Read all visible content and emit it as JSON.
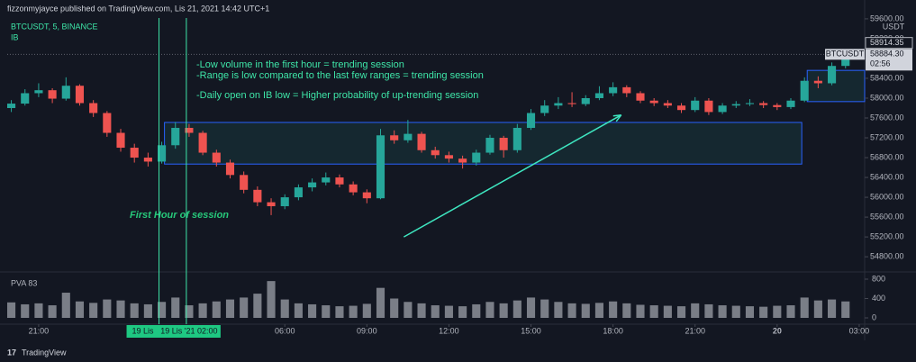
{
  "header": "fizzonmyjayce published on TradingView.com, Lis 21, 2021 14:42 UTC+1",
  "footer": "TradingView",
  "chart_data": {
    "type": "candlestick",
    "symbol_info": "BTCUSDT, 5, BINANCE",
    "indicator": "IB",
    "volume_label": "PVA 83",
    "y_unit": "USDT",
    "annotations": [
      "-Low volume in the first hour = trending session",
      "-Range is low compared to the last few ranges  = trending session",
      "-Daily open on IB low = Higher probability of up-trending session"
    ],
    "session_note": "First Hour of session",
    "up_color": "#26a69a",
    "down_color": "#ef5350",
    "volume_color": "#9598a1",
    "x": [
      -1,
      -0.5,
      0,
      0.5,
      1,
      1.5,
      2,
      2.5,
      3,
      3.5,
      4,
      4.5,
      5,
      5.5,
      6,
      6.5,
      7,
      7.5,
      8,
      8.5,
      9,
      9.5,
      10,
      10.5,
      11,
      11.5,
      12,
      12.5,
      13,
      13.5,
      14,
      14.5,
      15,
      15.5,
      16,
      16.5,
      17,
      17.5,
      18,
      18.5,
      19,
      19.5,
      20,
      20.5,
      21,
      21.5,
      22,
      22.5,
      23,
      23.5,
      24,
      24.5,
      25,
      25.5,
      26,
      26.5,
      27,
      27.5,
      28,
      28.5,
      29,
      29.5
    ],
    "candles": [
      [
        57800,
        57960,
        57720,
        57890
      ],
      [
        57890,
        58180,
        57850,
        58100
      ],
      [
        58100,
        58300,
        58020,
        58160
      ],
      [
        58160,
        58200,
        57900,
        57990
      ],
      [
        57990,
        58420,
        57950,
        58250
      ],
      [
        58250,
        58280,
        57850,
        57900
      ],
      [
        57900,
        57960,
        57620,
        57700
      ],
      [
        57700,
        57740,
        57220,
        57300
      ],
      [
        57300,
        57380,
        56920,
        57000
      ],
      [
        57000,
        57080,
        56700,
        56800
      ],
      [
        56800,
        56900,
        56620,
        56720
      ],
      [
        56720,
        57120,
        56680,
        57050
      ],
      [
        57050,
        57520,
        56980,
        57400
      ],
      [
        57400,
        57480,
        57220,
        57300
      ],
      [
        57300,
        57340,
        56850,
        56900
      ],
      [
        56900,
        56960,
        56620,
        56700
      ],
      [
        56700,
        56760,
        56380,
        56450
      ],
      [
        56450,
        56520,
        56080,
        56150
      ],
      [
        56150,
        56220,
        55820,
        55900
      ],
      [
        55900,
        55980,
        55640,
        55820
      ],
      [
        55820,
        56060,
        55760,
        56000
      ],
      [
        56000,
        56260,
        55940,
        56200
      ],
      [
        56200,
        56380,
        56120,
        56300
      ],
      [
        56300,
        56500,
        56240,
        56400
      ],
      [
        56400,
        56460,
        56200,
        56260
      ],
      [
        56260,
        56320,
        56040,
        56100
      ],
      [
        56100,
        56160,
        55880,
        55980
      ],
      [
        55980,
        57380,
        55960,
        57250
      ],
      [
        57250,
        57350,
        57080,
        57150
      ],
      [
        57150,
        57560,
        57100,
        57280
      ],
      [
        57280,
        57320,
        56900,
        56950
      ],
      [
        56950,
        57020,
        56780,
        56850
      ],
      [
        56850,
        56920,
        56700,
        56780
      ],
      [
        56780,
        56840,
        56580,
        56700
      ],
      [
        56700,
        56960,
        56640,
        56900
      ],
      [
        56900,
        57260,
        56860,
        57200
      ],
      [
        57200,
        57240,
        56800,
        56950
      ],
      [
        56950,
        57480,
        56900,
        57400
      ],
      [
        57400,
        57780,
        57360,
        57700
      ],
      [
        57700,
        57960,
        57640,
        57850
      ],
      [
        57850,
        58020,
        57780,
        57900
      ],
      [
        57900,
        58120,
        57820,
        57880
      ],
      [
        57880,
        58060,
        57840,
        58000
      ],
      [
        58000,
        58240,
        57960,
        58100
      ],
      [
        58100,
        58320,
        58040,
        58220
      ],
      [
        58220,
        58260,
        58020,
        58100
      ],
      [
        58100,
        58140,
        57900,
        57950
      ],
      [
        57950,
        58000,
        57840,
        57900
      ],
      [
        57900,
        57960,
        57800,
        57850
      ],
      [
        57850,
        57900,
        57700,
        57760
      ],
      [
        57760,
        58020,
        57720,
        57950
      ],
      [
        57950,
        58000,
        57660,
        57720
      ],
      [
        57720,
        57900,
        57680,
        57850
      ],
      [
        57850,
        57940,
        57800,
        57880
      ],
      [
        57880,
        57980,
        57840,
        57900
      ],
      [
        57900,
        57940,
        57800,
        57860
      ],
      [
        57860,
        57900,
        57760,
        57820
      ],
      [
        57820,
        58000,
        57780,
        57950
      ],
      [
        57950,
        58420,
        57920,
        58350
      ],
      [
        58350,
        58440,
        58200,
        58300
      ],
      [
        58300,
        58720,
        58260,
        58650
      ],
      [
        58650,
        58914.35,
        58600,
        58884.3
      ]
    ],
    "volume": [
      320,
      280,
      300,
      260,
      520,
      340,
      310,
      380,
      360,
      300,
      280,
      330,
      420,
      260,
      300,
      340,
      380,
      420,
      500,
      760,
      380,
      300,
      280,
      260,
      240,
      250,
      290,
      620,
      400,
      330,
      300,
      260,
      250,
      240,
      280,
      330,
      300,
      360,
      420,
      380,
      330,
      300,
      290,
      310,
      340,
      300,
      270,
      260,
      250,
      240,
      300,
      280,
      260,
      250,
      240,
      230,
      250,
      260,
      420,
      360,
      380,
      340
    ],
    "xlim": [
      -1.15,
      30.2
    ],
    "ylim": [
      54530,
      59980
    ],
    "vlim": [
      -130,
      930
    ],
    "xticks": [
      {
        "value": 0,
        "label": "21:00"
      },
      {
        "value": 9,
        "label": "06:00"
      },
      {
        "value": 12,
        "label": "09:00"
      },
      {
        "value": 15,
        "label": "12:00"
      },
      {
        "value": 18,
        "label": "15:00"
      },
      {
        "value": 21,
        "label": "18:00"
      },
      {
        "value": 24,
        "label": "21:00"
      },
      {
        "value": 27,
        "label": "20"
      },
      {
        "value": 30,
        "label": "03:00"
      }
    ],
    "yticks": [
      {
        "value": 54800,
        "label": "54800.00"
      },
      {
        "value": 55200,
        "label": "55200.00"
      },
      {
        "value": 55600,
        "label": "55600.00"
      },
      {
        "value": 56000,
        "label": "56000.00"
      },
      {
        "value": 56400,
        "label": "56400.00"
      },
      {
        "value": 56800,
        "label": "56800.00"
      },
      {
        "value": 57200,
        "label": "57200.00"
      },
      {
        "value": 57600,
        "label": "57600.00"
      },
      {
        "value": 58000,
        "label": "58000.00"
      },
      {
        "value": 58400,
        "label": "58400.00"
      },
      {
        "value": 58800,
        "label": "58800.00"
      },
      {
        "value": 59200,
        "label": "59200.00"
      },
      {
        "value": 59600,
        "label": "59600.00"
      }
    ],
    "vticks": [
      0,
      400,
      800
    ],
    "time_markers": [
      {
        "value": 4.4,
        "label": "19 Lis"
      },
      {
        "value": 5.4,
        "label": "19 Lis '21  02:00"
      }
    ],
    "ranges": [
      {
        "x0": 4.6,
        "x1": 27.9,
        "low": 56670,
        "high": 57510
      },
      {
        "x0": 28.1,
        "x1": 30.2,
        "low": 57930,
        "high": 58560
      }
    ],
    "arrow": {
      "x": [
        13.35,
        21.3
      ],
      "y": [
        55200,
        57660
      ]
    },
    "symbol_tag": "BTCUSDT",
    "high_price": 58914.35,
    "last_price": {
      "value": 58884.3,
      "label": "58884.30"
    },
    "countdown": "02:56"
  }
}
